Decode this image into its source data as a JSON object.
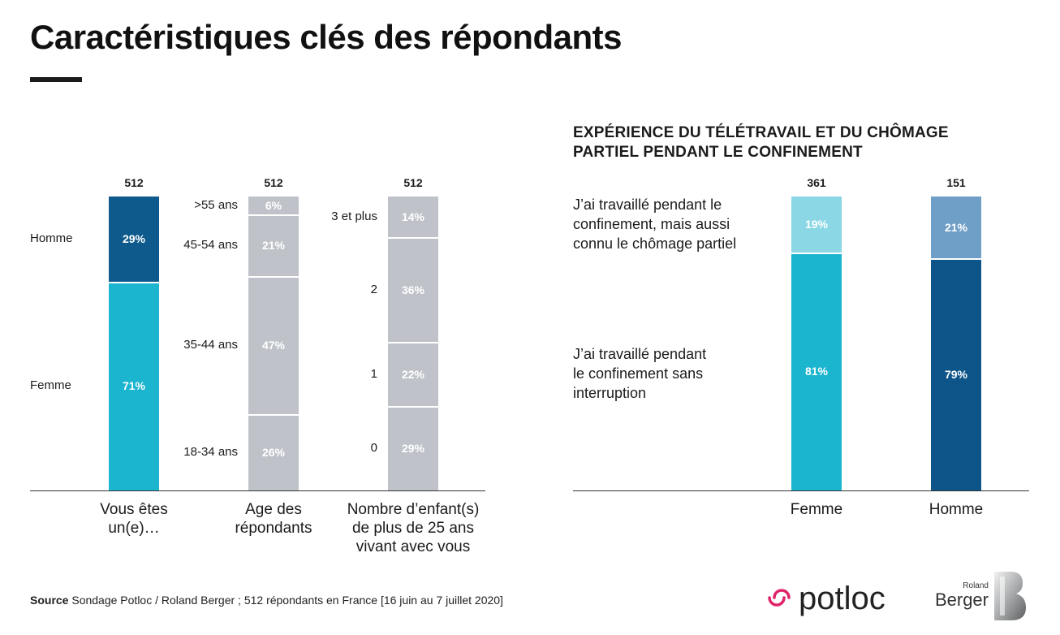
{
  "title": "Caractéristiques clés des répondants",
  "subtitle_lines": [
    "EXPÉRIENCE DU TÉLÉTRAVAIL ET DU CHÔMAGE",
    "PARTIEL PENDANT LE CONFINEMENT"
  ],
  "source": {
    "label": "Source",
    "text": "Sondage Potloc / Roland Berger ; 512 répondants en France [16 juin au 7 juillet 2020]"
  },
  "logos": {
    "potloc": "potloc",
    "rb_small": "Roland",
    "rb_main": "Berger"
  },
  "colors": {
    "homme_dark": "#0e5a8c",
    "femme_cyan": "#1bb5cf",
    "grey": "#bfc3c9",
    "femme_light": "#8bd7e5",
    "homme_light": "#6f9ec7",
    "homme_main": "#0d5489",
    "pink": "#e0236a"
  },
  "chart_data": [
    {
      "type": "bar",
      "stacked": true,
      "title": "",
      "categories": [
        "Vous êtes un(e)…",
        "Age des répondants",
        "Nombre d’enfant(s) de plus de 25 ans vivant avec vous"
      ],
      "category_lines": [
        [
          "Vous êtes",
          "un(e)…"
        ],
        [
          "Age des",
          "répondants"
        ],
        [
          "Nombre d’enfant(s)",
          "de plus de 25 ans",
          "vivant avec vous"
        ]
      ],
      "totals": [
        "512",
        "512",
        "512"
      ],
      "unit": "%",
      "ylim": [
        0,
        100
      ],
      "bars": [
        {
          "segments": [
            {
              "label": "Femme",
              "value": 71,
              "text": "71%",
              "color": "#1bb5cf"
            },
            {
              "label": "Homme",
              "value": 29,
              "text": "29%",
              "color": "#0e5a8c"
            }
          ]
        },
        {
          "segments": [
            {
              "label": "18-34 ans",
              "value": 26,
              "text": "26%",
              "color": "#bfc3c9"
            },
            {
              "label": "35-44 ans",
              "value": 47,
              "text": "47%",
              "color": "#bfc3c9"
            },
            {
              "label": "45-54 ans",
              "value": 21,
              "text": "21%",
              "color": "#bfc3c9"
            },
            {
              "label": ">55 ans",
              "value": 6,
              "text": "6%",
              "color": "#bfc3c9"
            }
          ]
        },
        {
          "segments": [
            {
              "label": "0",
              "value": 29,
              "text": "29%",
              "color": "#bfc3c9"
            },
            {
              "label": "1",
              "value": 22,
              "text": "22%",
              "color": "#bfc3c9"
            },
            {
              "label": "2",
              "value": 36,
              "text": "36%",
              "color": "#bfc3c9"
            },
            {
              "label": "3 et plus",
              "value": 14,
              "text": "14%",
              "color": "#bfc3c9"
            }
          ]
        }
      ]
    },
    {
      "type": "bar",
      "stacked": true,
      "title": "EXPÉRIENCE DU TÉLÉTRAVAIL ET DU CHÔMAGE PARTIEL PENDANT LE CONFINEMENT",
      "categories": [
        "Femme",
        "Homme"
      ],
      "totals": [
        "361",
        "151"
      ],
      "unit": "%",
      "ylim": [
        0,
        100
      ],
      "legend": [
        {
          "lines": [
            "J’ai travaillé pendant le",
            "confinement, mais aussi",
            "connu le chômage partiel"
          ]
        },
        {
          "lines": [
            "J’ai travaillé pendant",
            "le confinement sans",
            "interruption"
          ]
        }
      ],
      "bars": [
        {
          "segments": [
            {
              "value": 81,
              "text": "81%",
              "color": "#1bb5cf"
            },
            {
              "value": 19,
              "text": "19%",
              "color": "#8bd7e5"
            }
          ]
        },
        {
          "segments": [
            {
              "value": 79,
              "text": "79%",
              "color": "#0d5489"
            },
            {
              "value": 21,
              "text": "21%",
              "color": "#6f9ec7"
            }
          ]
        }
      ]
    }
  ]
}
